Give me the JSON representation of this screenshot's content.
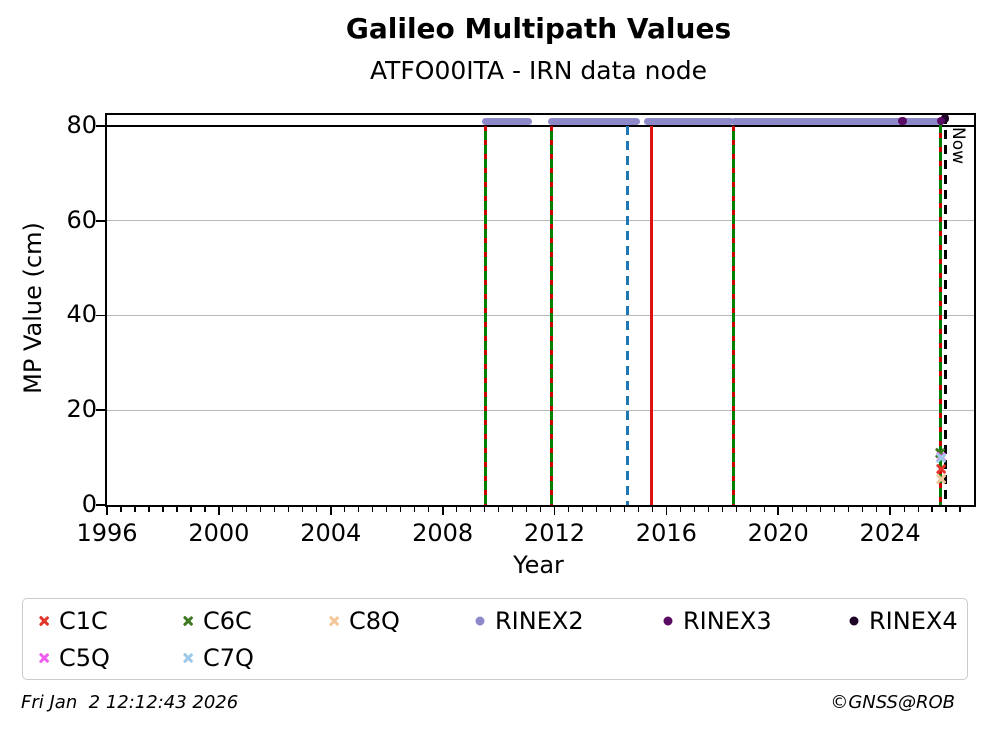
{
  "header": {
    "title": "Galileo Multipath Values",
    "subtitle": "ATFO00ITA - IRN data node"
  },
  "footer": {
    "timestamp": "Fri Jan  2 12:12:43 2026",
    "credit": "©GNSS@ROB"
  },
  "chart_data": {
    "type": "scatter",
    "title": "Galileo Multipath Values",
    "subtitle": "ATFO00ITA - IRN data node",
    "xlabel": "Year",
    "ylabel": "MP Value (cm)",
    "xlim": [
      1996,
      2027
    ],
    "ylim": [
      0,
      82.3
    ],
    "x_major_ticks": [
      1996,
      2000,
      2004,
      2008,
      2012,
      2016,
      2020,
      2024
    ],
    "x_minor_step": 0.5,
    "y_major_ticks": [
      0,
      20,
      40,
      60,
      80
    ],
    "gridlines_y": [
      20,
      40,
      60
    ],
    "grid_on": true,
    "grid_color": "#b9b9b9",
    "hline": {
      "y": 80,
      "color": "#000000"
    },
    "colors": {
      "green": "#007f00",
      "red_dash": "#cc0000",
      "series": {
        "C1C": "#e3342a",
        "C5Q": "#ef5def",
        "C6C": "#3f7a22",
        "C7Q": "#9ec9e9",
        "C8Q": "#f4c79b",
        "RINEX2": "#8d89c9",
        "RINEX3": "#5a0b63",
        "RINEX4": "#1e0124"
      }
    },
    "vlines": [
      {
        "name": "gap-2009",
        "x": 2009.54,
        "y1": 0,
        "y2": 80,
        "style": "combo"
      },
      {
        "name": "gap-2011",
        "x": 2011.89,
        "y1": 0,
        "y2": 80,
        "style": "combo"
      },
      {
        "name": "event-2014",
        "x": 2014.62,
        "y1": 0,
        "y2": 80,
        "style": "dashed",
        "color": "#1f77b4"
      },
      {
        "name": "event-2015",
        "x": 2015.46,
        "y1": 0,
        "y2": 80,
        "style": "solid",
        "color": "#dd1111"
      },
      {
        "name": "gap-2018",
        "x": 2018.4,
        "y1": 0,
        "y2": 80,
        "style": "combo"
      },
      {
        "name": "gap-2025",
        "x": 2025.82,
        "y1": 0,
        "y2": 81.5,
        "style": "combo"
      },
      {
        "name": "now",
        "x": 2025.98,
        "y1": 0,
        "y2": 82.3,
        "style": "dashed",
        "color": "#000000",
        "label": "Now"
      }
    ],
    "rinex2_band": {
      "series": "RINEX2",
      "y": 81,
      "segments": [
        [
          2009.55,
          2009.95
        ],
        [
          2010.02,
          2010.3
        ],
        [
          2010.36,
          2010.5
        ],
        [
          2010.56,
          2011.06
        ],
        [
          2011.9,
          2013.26
        ],
        [
          2013.32,
          2014.5
        ],
        [
          2014.55,
          2014.95
        ],
        [
          2015.32,
          2016.93
        ],
        [
          2016.99,
          2018.28
        ],
        [
          2018.42,
          2019.9
        ],
        [
          2019.96,
          2025.68
        ]
      ]
    },
    "points": [
      {
        "series": "RINEX3",
        "marker": "dot",
        "x": 2024.45,
        "y": 81
      },
      {
        "series": "RINEX4",
        "marker": "dot",
        "x": 2025.96,
        "y": 81.6
      },
      {
        "series": "RINEX3",
        "marker": "dot",
        "x": 2025.82,
        "y": 81
      },
      {
        "series": "C6C",
        "marker": "x",
        "x": 2025.8,
        "y": 11
      },
      {
        "series": "C5Q",
        "marker": "x",
        "x": 2025.82,
        "y": 10.2
      },
      {
        "series": "C7Q",
        "marker": "x",
        "x": 2025.82,
        "y": 10
      },
      {
        "series": "C1C",
        "marker": "x",
        "x": 2025.82,
        "y": 7.6
      },
      {
        "series": "C8Q",
        "marker": "x",
        "x": 2025.83,
        "y": 5.5
      }
    ]
  },
  "legend": {
    "cols": [
      21,
      165,
      311,
      457,
      645,
      831
    ],
    "rows": [
      22,
      59
    ],
    "label_offset": 15,
    "items": [
      {
        "label": "C1C",
        "marker": "x",
        "color": "#e3342a",
        "col": 0,
        "row": 0
      },
      {
        "label": "C6C",
        "marker": "x",
        "color": "#3f7a22",
        "col": 1,
        "row": 0
      },
      {
        "label": "C8Q",
        "marker": "x",
        "color": "#f4c79b",
        "col": 2,
        "row": 0
      },
      {
        "label": "RINEX2",
        "marker": "dot",
        "color": "#8d89c9",
        "col": 3,
        "row": 0
      },
      {
        "label": "RINEX3",
        "marker": "dot",
        "color": "#5a0b63",
        "col": 4,
        "row": 0
      },
      {
        "label": "RINEX4",
        "marker": "dot",
        "color": "#1e0124",
        "col": 5,
        "row": 0
      },
      {
        "label": "C5Q",
        "marker": "x",
        "color": "#ef5def",
        "col": 0,
        "row": 1
      },
      {
        "label": "C7Q",
        "marker": "x",
        "color": "#9ec9e9",
        "col": 1,
        "row": 1
      }
    ]
  }
}
